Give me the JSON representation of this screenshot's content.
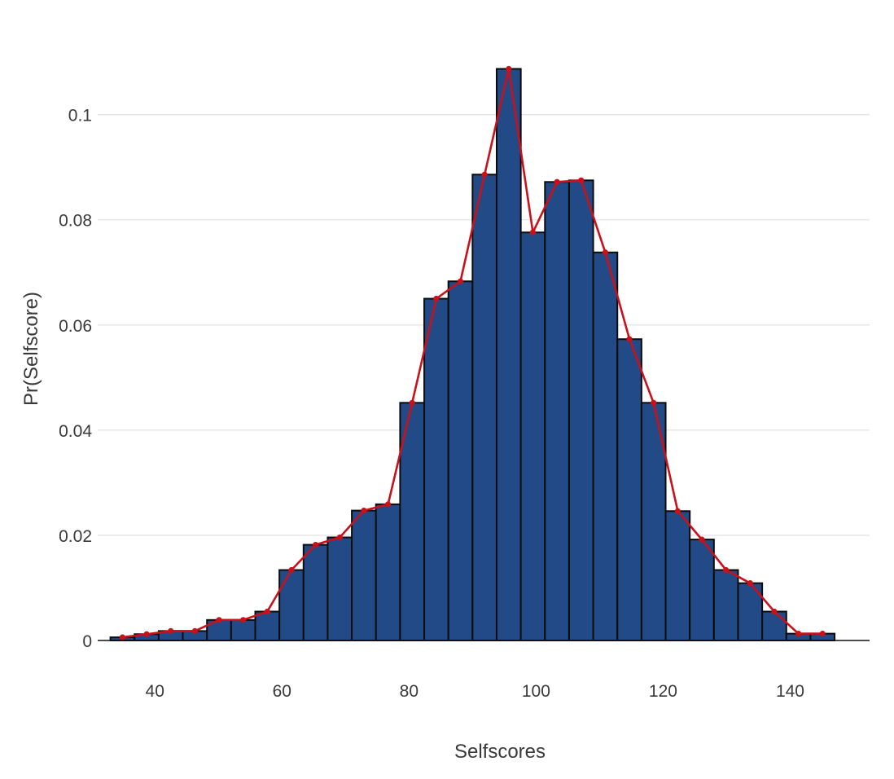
{
  "chart_data": {
    "type": "bar",
    "subtype": "histogram_with_frequency_polygon",
    "title": "",
    "xlabel": "Selfscores",
    "ylabel": "Pr(Selfscore)",
    "xlim": [
      31,
      152.5
    ],
    "ylim": [
      0,
      0.1125
    ],
    "x_ticks": [
      40,
      60,
      80,
      100,
      120,
      140
    ],
    "y_ticks": [
      0,
      0.02,
      0.04,
      0.06,
      0.08,
      0.1
    ],
    "x_tick_labels": [
      "40",
      "60",
      "80",
      "100",
      "120",
      "140"
    ],
    "y_tick_labels": [
      "0",
      "0.02",
      "0.04",
      "0.06",
      "0.08",
      "0.1"
    ],
    "grid": "horizontal",
    "legend": "none",
    "colors": {
      "bar_fill": "#224a87",
      "bar_outline": "#0c0c0c",
      "line": "#c8111b",
      "grid": "#e4e4e4"
    },
    "bin_width": 3.8,
    "bin_starts": [
      33.0,
      36.8,
      40.6,
      44.4,
      48.2,
      52.0,
      55.8,
      59.6,
      63.4,
      67.2,
      71.0,
      74.8,
      78.6,
      82.4,
      86.2,
      90.0,
      93.8,
      97.6,
      101.4,
      105.2,
      109.0,
      112.8,
      116.6,
      120.4,
      124.2,
      128.0,
      131.8,
      135.6,
      139.4,
      143.2
    ],
    "bin_centers": [
      34.9,
      38.7,
      42.5,
      46.3,
      50.1,
      53.9,
      57.7,
      61.5,
      65.3,
      69.1,
      72.9,
      76.7,
      80.5,
      84.3,
      88.1,
      91.9,
      95.7,
      99.5,
      103.3,
      107.1,
      110.9,
      114.7,
      118.5,
      122.3,
      126.1,
      129.9,
      133.7,
      137.5,
      141.3,
      145.1
    ],
    "values": [
      0.0006,
      0.0012,
      0.0018,
      0.0018,
      0.0039,
      0.0039,
      0.0055,
      0.0134,
      0.0182,
      0.0196,
      0.0247,
      0.0259,
      0.0452,
      0.065,
      0.0683,
      0.0886,
      0.1087,
      0.0776,
      0.0872,
      0.0875,
      0.0738,
      0.0573,
      0.0452,
      0.0246,
      0.0192,
      0.0134,
      0.0109,
      0.0055,
      0.0013,
      0.0013
    ]
  }
}
